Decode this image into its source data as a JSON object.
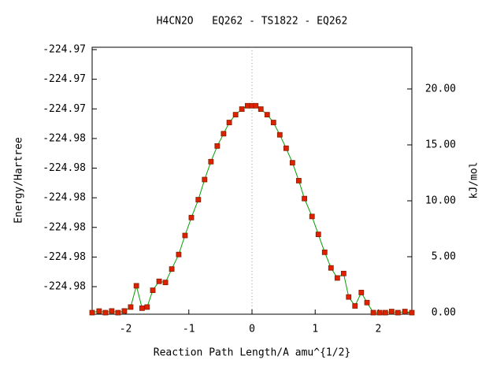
{
  "chart_data": {
    "type": "line",
    "title": "H4CN2O   EQ262 - TS1822 - EQ262",
    "xlabel": "Reaction Path Length/A amu^{1/2}",
    "ylabel": "Energy/Hartree",
    "y2label": "kJ/mol",
    "xlim": [
      -2.53,
      2.53
    ],
    "xticks": [
      -2,
      -1,
      0,
      1,
      2
    ],
    "ylim": [
      -224.98143,
      -224.97242
    ],
    "yticks": [
      {
        "value": -224.9805,
        "label": "-224.98"
      },
      {
        "value": -224.9795,
        "label": "-224.98"
      },
      {
        "value": -224.9785,
        "label": "-224.98"
      },
      {
        "value": -224.9775,
        "label": "-224.98"
      },
      {
        "value": -224.9765,
        "label": "-224.98"
      },
      {
        "value": -224.9755,
        "label": "-224.98"
      },
      {
        "value": -224.9745,
        "label": "-224.97"
      },
      {
        "value": -224.9735,
        "label": "-224.97"
      },
      {
        "value": -224.9725,
        "label": "-224.97"
      }
    ],
    "y2lim": [
      -0.14,
      23.73
    ],
    "y2ticks": [
      {
        "value": 0,
        "label": "0.00"
      },
      {
        "value": 5,
        "label": "5.00"
      },
      {
        "value": 10,
        "label": "10.00"
      },
      {
        "value": 15,
        "label": "15.00"
      },
      {
        "value": 20,
        "label": "20.00"
      }
    ],
    "vline_x": 0,
    "x": [
      -2.53,
      -2.42,
      -2.32,
      -2.22,
      -2.12,
      -2.02,
      -1.92,
      -1.83,
      -1.74,
      -1.66,
      -1.57,
      -1.47,
      -1.37,
      -1.27,
      -1.16,
      -1.06,
      -0.96,
      -0.85,
      -0.75,
      -0.65,
      -0.55,
      -0.45,
      -0.36,
      -0.26,
      -0.16,
      -0.07,
      0,
      0.06,
      0.14,
      0.24,
      0.34,
      0.44,
      0.54,
      0.64,
      0.74,
      0.83,
      0.95,
      1.05,
      1.15,
      1.25,
      1.35,
      1.45,
      1.53,
      1.63,
      1.73,
      1.82,
      1.92,
      2.02,
      2.11,
      2.21,
      2.31,
      2.42,
      2.53
    ],
    "series": [
      {
        "axis": "y2",
        "color": "#00a000",
        "marker_color": "#e02000",
        "values": [
          0,
          0.14,
          0,
          0.15,
          0,
          0.15,
          0.5,
          2.4,
          0.4,
          0.5,
          2.0,
          2.8,
          2.7,
          3.9,
          5.2,
          6.9,
          8.5,
          10.1,
          11.9,
          13.5,
          14.9,
          16.0,
          17.0,
          17.7,
          18.2,
          18.5,
          18.5,
          18.5,
          18.2,
          17.7,
          17.0,
          15.9,
          14.7,
          13.4,
          11.8,
          10.2,
          8.6,
          7.0,
          5.4,
          4.0,
          3.1,
          3.5,
          1.4,
          0.6,
          1.8,
          0.9,
          0,
          0,
          0,
          0.1,
          0,
          0.1,
          0
        ]
      }
    ]
  }
}
